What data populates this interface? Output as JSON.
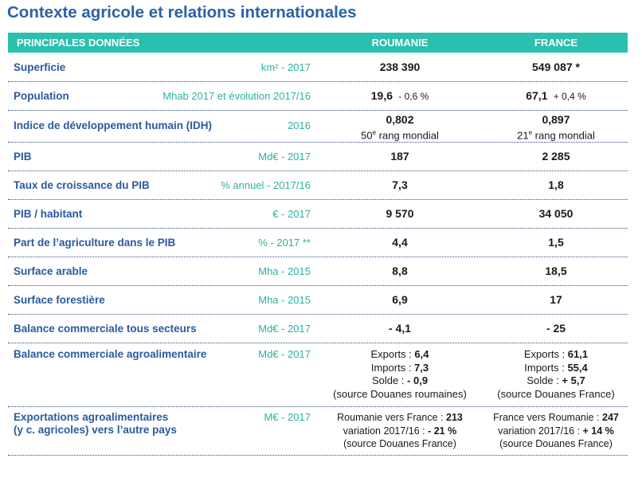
{
  "title": "Contexte agricole et relations internationales",
  "header": {
    "label": "PRINCIPALES DONNÉES",
    "col_ro": "ROUMANIE",
    "col_fr": "FRANCE"
  },
  "rows": [
    {
      "label": "Superficie",
      "unit": "km² - 2017",
      "ro": "238 390",
      "fr": "549 087 *"
    },
    {
      "label": "Population",
      "unit": "Mhab 2017 et évolution 2017/16",
      "ro": "19,6",
      "ro_sub": "- 0,6 %",
      "fr": "67,1",
      "fr_sub": "+ 0,4 %"
    },
    {
      "label": "Indice de développement humain (IDH)",
      "unit": "2016",
      "ro": "0,802",
      "ro_rank_num": "50",
      "ro_rank_sup": "e",
      "ro_rank_text": " rang mondial",
      "fr": "0,897",
      "fr_rank_num": "21",
      "fr_rank_sup": "e",
      "fr_rank_text": " rang mondial"
    },
    {
      "label": "PIB",
      "unit": "Md€ - 2017",
      "ro": "187",
      "fr": "2 285"
    },
    {
      "label": "Taux de croissance du PIB",
      "unit": "% annuel - 2017/16",
      "ro": "7,3",
      "fr": "1,8"
    },
    {
      "label": "PIB / habitant",
      "unit": "€ - 2017",
      "ro": "9 570",
      "fr": "34 050"
    },
    {
      "label": "Part de l’agriculture dans le PIB",
      "unit": "% - 2017 **",
      "ro": "4,4",
      "fr": "1,5"
    },
    {
      "label": "Surface arable",
      "unit": "Mha  - 2015",
      "ro": "8,8",
      "fr": "18,5"
    },
    {
      "label": "Surface forestière",
      "unit": "Mha - 2015",
      "ro": "6,9",
      "fr": "17"
    },
    {
      "label": "Balance commerciale tous secteurs",
      "unit": "Md€ - 2017",
      "ro": "- 4,1",
      "fr": "- 25"
    },
    {
      "label": "Balance commerciale  agroalimentaire",
      "unit": "Md€ - 2017",
      "ro_exports_label": "Exports : ",
      "ro_exports": "6,4",
      "ro_imports_label": "Imports : ",
      "ro_imports": "7,3",
      "ro_solde_label": "Solde : ",
      "ro_solde": "- 0,9",
      "ro_source": "(source Douanes roumaines)",
      "fr_exports_label": "Exports : ",
      "fr_exports": "61,1",
      "fr_imports_label": "Imports : ",
      "fr_imports": "55,4",
      "fr_solde_label": "Solde : ",
      "fr_solde": "+ 5,7",
      "fr_source": "(source Douanes France)"
    },
    {
      "label_line1": "Exportations agroalimentaires",
      "label_line2": "(y c. agricoles) vers l’autre pays",
      "unit": "M€ - 2017",
      "ro_line1_label": "Roumanie vers France : ",
      "ro_line1_val": "213",
      "ro_line2_label": "variation 2017/16 : ",
      "ro_line2_val": "- 21 %",
      "ro_source": "(source Douanes France)",
      "fr_line1_label": "France vers Roumanie : ",
      "fr_line1_val": "247",
      "fr_line2_label": "variation 2017/16 : ",
      "fr_line2_val": "+ 14 %",
      "fr_source": "(source Douanes France)"
    }
  ]
}
